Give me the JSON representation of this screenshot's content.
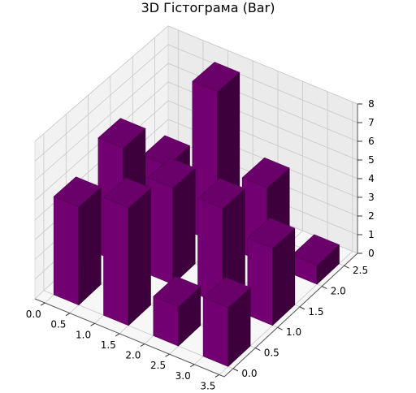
{
  "chart_data": {
    "type": "bar3d",
    "title": "3D Гістограма (Bar)",
    "xlabel": "",
    "ylabel": "",
    "zlabel": "",
    "xlim": [
      -0.2,
      3.6
    ],
    "ylim": [
      -0.2,
      2.8
    ],
    "zlim": [
      0,
      8
    ],
    "x_ticks": [
      "0.0",
      "0.5",
      "1.0",
      "1.5",
      "2.0",
      "2.5",
      "3.0",
      "3.5"
    ],
    "y_ticks": [
      "0.0",
      "0.5",
      "1.0",
      "1.5",
      "2.0",
      "2.5"
    ],
    "z_ticks": [
      "0",
      "1",
      "2",
      "3",
      "4",
      "5",
      "6",
      "7",
      "8"
    ],
    "bar_width": 0.5,
    "bar_depth": 0.5,
    "bar_color": "#800080",
    "grid": true,
    "bars": [
      {
        "x": 0,
        "y": 0,
        "z": 5
      },
      {
        "x": 1,
        "y": 0,
        "z": 6
      },
      {
        "x": 2,
        "y": 0,
        "z": 2
      },
      {
        "x": 3,
        "y": 0,
        "z": 3
      },
      {
        "x": 0,
        "y": 1,
        "z": 6
      },
      {
        "x": 1,
        "y": 1,
        "z": 5
      },
      {
        "x": 2,
        "y": 1,
        "z": 5
      },
      {
        "x": 3,
        "y": 1,
        "z": 4
      },
      {
        "x": 0,
        "y": 2,
        "z": 3
      },
      {
        "x": 1,
        "y": 2,
        "z": 8
      },
      {
        "x": 2,
        "y": 2,
        "z": 4
      },
      {
        "x": 3,
        "y": 2,
        "z": 1
      }
    ]
  }
}
